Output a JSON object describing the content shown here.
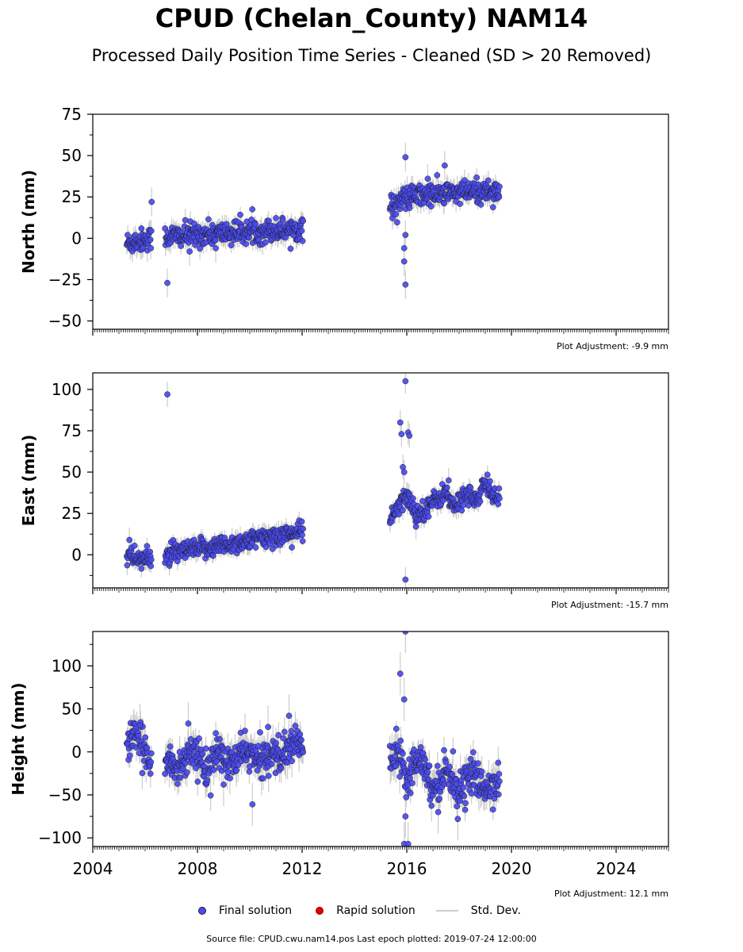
{
  "title": "CPUD (Chelan_County) NAM14",
  "subtitle": "Processed Daily Position Time Series - Cleaned (SD > 20 Removed)",
  "legend": {
    "final": "Final solution",
    "rapid": "Rapid solution",
    "std": "Std. Dev."
  },
  "footer": "Source file: CPUD.cwu.nam14.pos  Last epoch plotted: 2019-07-24 12:00:00",
  "colors": {
    "final": "#4a4af0",
    "final_edge": "#1a1a1a",
    "rapid": "#dd0000",
    "std": "#cccccc"
  },
  "chart_data": [
    {
      "type": "scatter",
      "ylabel": "North (mm)",
      "xlim": [
        2004,
        2026
      ],
      "ylim": [
        -55,
        75
      ],
      "yticks": [
        -50,
        -25,
        0,
        25,
        50,
        75
      ],
      "ytick_labels": [
        "−50",
        "−25",
        "0",
        "25",
        "50",
        "75"
      ],
      "xticks": [
        2004,
        2008,
        2012,
        2016,
        2020,
        2024
      ],
      "show_xtick_labels": false,
      "adjustment": "Plot Adjustment: -9.9 mm",
      "trend": [
        [
          2005.3,
          -3
        ],
        [
          2006.2,
          0
        ],
        [
          2006.8,
          1
        ],
        [
          2012.0,
          6
        ],
        [
          2015.4,
          19
        ],
        [
          2015.9,
          24
        ],
        [
          2016.5,
          26
        ],
        [
          2019.55,
          29
        ]
      ],
      "gaps": [
        [
          2006.25,
          2006.75
        ],
        [
          2012.05,
          2015.35
        ]
      ],
      "noise": 3.5,
      "outliers": [
        [
          2006.85,
          -27
        ],
        [
          2006.25,
          22
        ],
        [
          2015.95,
          49
        ],
        [
          2015.95,
          -28
        ],
        [
          2015.9,
          -14
        ],
        [
          2015.9,
          -6
        ],
        [
          2015.95,
          2
        ],
        [
          2017.45,
          44
        ],
        [
          2007.7,
          -8
        ],
        [
          2008.7,
          -6
        ],
        [
          2016.8,
          36
        ]
      ],
      "series": [
        {
          "name": "Final solution",
          "x_range": [
            2005.3,
            2019.55
          ]
        }
      ]
    },
    {
      "type": "scatter",
      "ylabel": "East (mm)",
      "xlim": [
        2004,
        2026
      ],
      "ylim": [
        -20,
        110
      ],
      "yticks": [
        0,
        25,
        50,
        75,
        100
      ],
      "ytick_labels": [
        "0",
        "25",
        "50",
        "75",
        "100"
      ],
      "xticks": [
        2004,
        2008,
        2012,
        2016,
        2020,
        2024
      ],
      "show_xtick_labels": false,
      "adjustment": "Plot Adjustment: -15.7 mm",
      "trend": [
        [
          2005.3,
          -1
        ],
        [
          2006.2,
          -3
        ],
        [
          2006.8,
          0
        ],
        [
          2012.0,
          14
        ],
        [
          2015.4,
          22
        ],
        [
          2016.0,
          36
        ],
        [
          2016.4,
          24
        ],
        [
          2017.0,
          32
        ],
        [
          2017.5,
          38
        ],
        [
          2017.8,
          28
        ],
        [
          2018.3,
          38
        ],
        [
          2018.7,
          32
        ],
        [
          2019.0,
          44
        ],
        [
          2019.3,
          36
        ],
        [
          2019.55,
          35
        ]
      ],
      "gaps": [
        [
          2006.25,
          2006.75
        ],
        [
          2012.05,
          2015.35
        ]
      ],
      "noise": 3,
      "outliers": [
        [
          2006.85,
          97
        ],
        [
          2005.4,
          9
        ],
        [
          2015.95,
          105
        ],
        [
          2015.75,
          80
        ],
        [
          2015.8,
          73
        ],
        [
          2016.05,
          74
        ],
        [
          2016.1,
          72
        ],
        [
          2015.85,
          53
        ],
        [
          2015.9,
          50
        ],
        [
          2015.95,
          -15
        ],
        [
          2017.6,
          45
        ],
        [
          2016.35,
          17
        ]
      ],
      "series": [
        {
          "name": "Final solution",
          "x_range": [
            2005.3,
            2019.55
          ]
        }
      ]
    },
    {
      "type": "scatter",
      "ylabel": "Height (mm)",
      "xlim": [
        2004,
        2026
      ],
      "ylim": [
        -110,
        140
      ],
      "yticks": [
        -100,
        -50,
        0,
        50,
        100
      ],
      "ytick_labels": [
        "−100",
        "−50",
        "0",
        "50",
        "100"
      ],
      "xticks": [
        2004,
        2008,
        2012,
        2016,
        2020,
        2024
      ],
      "xtick_labels": [
        "2004",
        "2008",
        "2012",
        "2016",
        "2020",
        "2024"
      ],
      "show_xtick_labels": true,
      "adjustment": "Plot Adjustment: 12.1 mm",
      "trend": [
        [
          2005.3,
          8
        ],
        [
          2005.6,
          18
        ],
        [
          2006.2,
          -8
        ],
        [
          2006.8,
          -5
        ],
        [
          2007.2,
          -22
        ],
        [
          2007.8,
          5
        ],
        [
          2008.3,
          -22
        ],
        [
          2008.8,
          0
        ],
        [
          2009.3,
          -18
        ],
        [
          2009.8,
          5
        ],
        [
          2010.3,
          -12
        ],
        [
          2010.8,
          0
        ],
        [
          2011.3,
          -5
        ],
        [
          2011.8,
          15
        ],
        [
          2012.0,
          5
        ],
        [
          2015.4,
          -10
        ],
        [
          2015.6,
          10
        ],
        [
          2016.0,
          -30
        ],
        [
          2016.5,
          0
        ],
        [
          2017.0,
          -45
        ],
        [
          2017.5,
          -20
        ],
        [
          2018.0,
          -45
        ],
        [
          2018.5,
          -25
        ],
        [
          2019.0,
          -45
        ],
        [
          2019.55,
          -30
        ]
      ],
      "gaps": [
        [
          2006.25,
          2006.75
        ],
        [
          2012.05,
          2015.35
        ]
      ],
      "noise": 10,
      "outliers": [
        [
          2015.95,
          140
        ],
        [
          2015.75,
          91
        ],
        [
          2015.9,
          61
        ],
        [
          2015.95,
          -75
        ],
        [
          2015.9,
          -107
        ],
        [
          2016.05,
          -107
        ],
        [
          2010.1,
          -61
        ],
        [
          2010.7,
          29
        ],
        [
          2011.5,
          42
        ],
        [
          2007.65,
          33
        ],
        [
          2017.2,
          -70
        ],
        [
          2017.95,
          -78
        ],
        [
          2005.8,
          31
        ],
        [
          2009.0,
          -38
        ]
      ],
      "series": [
        {
          "name": "Final solution",
          "x_range": [
            2005.3,
            2019.55
          ]
        }
      ]
    }
  ]
}
